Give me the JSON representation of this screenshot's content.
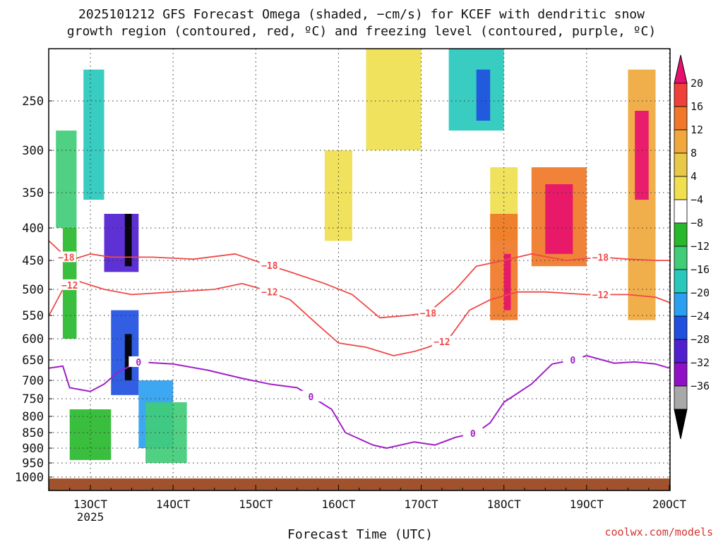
{
  "chart_data": {
    "type": "heatmap",
    "title_line1": "2025101212 GFS Forecast Omega (shaded, −cm/s) for KCEF with dendritic snow",
    "title_line2": "growth region (contoured, red, ºC) and freezing level (contoured, purple, ºC)",
    "xlabel": "Forecast Time (UTC)",
    "ylabel": "",
    "xlim_hours": [
      0,
      180
    ],
    "ylim_hpa": [
      1040,
      200
    ],
    "x_ticks": [
      {
        "hour": 12,
        "label": "13OCT"
      },
      {
        "hour": 36,
        "label": "14OCT"
      },
      {
        "hour": 60,
        "label": "15OCT"
      },
      {
        "hour": 84,
        "label": "16OCT"
      },
      {
        "hour": 108,
        "label": "17OCT"
      },
      {
        "hour": 132,
        "label": "18OCT"
      },
      {
        "hour": 156,
        "label": "19OCT"
      },
      {
        "hour": 180,
        "label": "20OCT"
      }
    ],
    "x_sublabel": {
      "hour": 12,
      "label": "2025"
    },
    "y_ticks": [
      250,
      300,
      350,
      400,
      450,
      500,
      550,
      600,
      650,
      700,
      750,
      800,
      850,
      900,
      950,
      1000
    ],
    "colorbar": {
      "labels": [
        "20",
        "16",
        "12",
        "8",
        "4",
        "−4",
        "−8",
        "−12",
        "−16",
        "−20",
        "−24",
        "−28",
        "−32",
        "−36"
      ],
      "colors": [
        "#e8106e",
        "#f0403a",
        "#f07828",
        "#f0a83c",
        "#e8c848",
        "#f0e050",
        "#ffffff",
        "#28b82c",
        "#40cc78",
        "#28c8bc",
        "#2ca0f0",
        "#2050e0",
        "#5020d0",
        "#9010c8",
        "#a8a8a8",
        "#000000"
      ]
    },
    "series": [
      {
        "name": "-18",
        "color": "#f04848",
        "label": "−18",
        "label_at_hours": [
          5,
          64,
          110,
          160
        ],
        "points": [
          [
            0,
            420
          ],
          [
            6,
            450
          ],
          [
            12,
            440
          ],
          [
            18,
            445
          ],
          [
            30,
            445
          ],
          [
            42,
            448
          ],
          [
            54,
            440
          ],
          [
            62,
            455
          ],
          [
            70,
            470
          ],
          [
            80,
            490
          ],
          [
            88,
            510
          ],
          [
            96,
            555
          ],
          [
            104,
            550
          ],
          [
            110,
            545
          ],
          [
            118,
            500
          ],
          [
            124,
            460
          ],
          [
            132,
            450
          ],
          [
            140,
            440
          ],
          [
            150,
            450
          ],
          [
            160,
            445
          ],
          [
            168,
            448
          ],
          [
            176,
            450
          ],
          [
            180,
            450
          ]
        ]
      },
      {
        "name": "-12",
        "color": "#f04848",
        "label": "−12",
        "label_at_hours": [
          6,
          64,
          114,
          160
        ],
        "points": [
          [
            0,
            550
          ],
          [
            4,
            500
          ],
          [
            8,
            485
          ],
          [
            16,
            500
          ],
          [
            24,
            510
          ],
          [
            36,
            505
          ],
          [
            48,
            500
          ],
          [
            56,
            490
          ],
          [
            62,
            500
          ],
          [
            70,
            520
          ],
          [
            78,
            570
          ],
          [
            84,
            610
          ],
          [
            92,
            620
          ],
          [
            100,
            640
          ],
          [
            106,
            630
          ],
          [
            110,
            620
          ],
          [
            116,
            600
          ],
          [
            122,
            540
          ],
          [
            128,
            520
          ],
          [
            136,
            505
          ],
          [
            144,
            505
          ],
          [
            156,
            510
          ],
          [
            168,
            510
          ],
          [
            176,
            515
          ],
          [
            180,
            525
          ]
        ]
      },
      {
        "name": "0",
        "color": "#a020c8",
        "label": "0",
        "label_at_hours": [
          26,
          76,
          123,
          152
        ],
        "points": [
          [
            0,
            670
          ],
          [
            4,
            665
          ],
          [
            6,
            720
          ],
          [
            12,
            730
          ],
          [
            16,
            710
          ],
          [
            20,
            680
          ],
          [
            26,
            655
          ],
          [
            36,
            660
          ],
          [
            46,
            675
          ],
          [
            56,
            695
          ],
          [
            64,
            710
          ],
          [
            72,
            720
          ],
          [
            82,
            780
          ],
          [
            86,
            850
          ],
          [
            94,
            890
          ],
          [
            98,
            900
          ],
          [
            106,
            880
          ],
          [
            112,
            890
          ],
          [
            118,
            865
          ],
          [
            124,
            850
          ],
          [
            128,
            820
          ],
          [
            132,
            760
          ],
          [
            140,
            710
          ],
          [
            146,
            660
          ],
          [
            152,
            650
          ],
          [
            156,
            640
          ],
          [
            164,
            658
          ],
          [
            170,
            655
          ],
          [
            176,
            660
          ],
          [
            180,
            670
          ]
        ]
      }
    ],
    "shading_cells": [
      {
        "x": [
          1,
          4
        ],
        "p": [
          280,
          400
        ],
        "v": -12
      },
      {
        "x": [
          2,
          4
        ],
        "p": [
          400,
          600
        ],
        "v": -8
      },
      {
        "x": [
          5,
          8
        ],
        "p": [
          220,
          360
        ],
        "v": -16
      },
      {
        "x": [
          3,
          9
        ],
        "p": [
          780,
          940
        ],
        "v": -8
      },
      {
        "x": [
          8,
          13
        ],
        "p": [
          380,
          470
        ],
        "v": -28
      },
      {
        "x": [
          11,
          12
        ],
        "p": [
          380,
          460
        ],
        "v": -36
      },
      {
        "x": [
          9,
          13
        ],
        "p": [
          540,
          740
        ],
        "v": -24
      },
      {
        "x": [
          11,
          12
        ],
        "p": [
          590,
          700
        ],
        "v": -36
      },
      {
        "x": [
          13,
          18
        ],
        "p": [
          700,
          900
        ],
        "v": -20
      },
      {
        "x": [
          14,
          20
        ],
        "p": [
          760,
          950
        ],
        "v": -12
      },
      {
        "x": [
          40,
          44
        ],
        "p": [
          300,
          420
        ],
        "v": 4
      },
      {
        "x": [
          46,
          54
        ],
        "p": [
          200,
          300
        ],
        "v": 4
      },
      {
        "x": [
          58,
          66
        ],
        "p": [
          200,
          280
        ],
        "v": -16
      },
      {
        "x": [
          62,
          64
        ],
        "p": [
          220,
          270
        ],
        "v": -24
      },
      {
        "x": [
          64,
          68
        ],
        "p": [
          320,
          420
        ],
        "v": 4
      },
      {
        "x": [
          64,
          68
        ],
        "p": [
          380,
          560
        ],
        "v": 12
      },
      {
        "x": [
          66,
          67
        ],
        "p": [
          440,
          540
        ],
        "v": 20
      },
      {
        "x": [
          70,
          78
        ],
        "p": [
          320,
          460
        ],
        "v": 12
      },
      {
        "x": [
          72,
          76
        ],
        "p": [
          340,
          440
        ],
        "v": 20
      },
      {
        "x": [
          84,
          88
        ],
        "p": [
          220,
          560
        ],
        "v": 8
      },
      {
        "x": [
          85,
          87
        ],
        "p": [
          260,
          360
        ],
        "v": 20
      }
    ]
  },
  "footer": {
    "credit": "coolwx.com/models"
  }
}
